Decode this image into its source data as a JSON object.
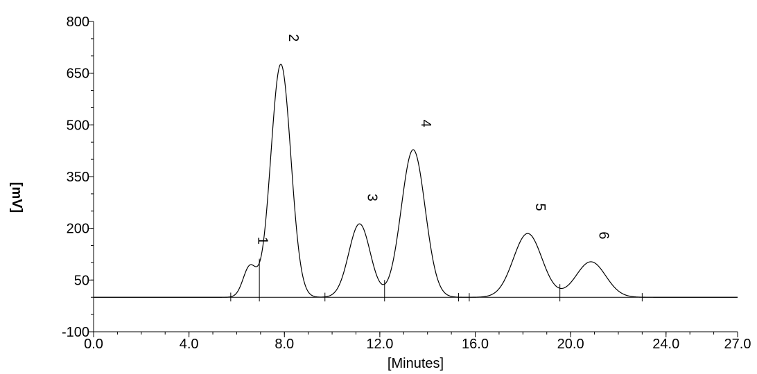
{
  "chart_data": {
    "type": "line",
    "title": "",
    "xlabel": "[Minutes]",
    "ylabel": "[mV]",
    "xlim": [
      0,
      27
    ],
    "ylim": [
      -100,
      800
    ],
    "x_ticks": [
      0,
      4,
      8,
      12,
      16,
      20,
      24,
      27
    ],
    "x_tick_labels": [
      "0.0",
      "4.0",
      "8.0",
      "12.0",
      "16.0",
      "20.0",
      "24.0",
      "27.0"
    ],
    "y_ticks": [
      -100,
      50,
      200,
      350,
      500,
      650,
      800
    ],
    "y_tick_labels": [
      "-100",
      "50",
      "200",
      "350",
      "500",
      "650",
      "800"
    ],
    "grid": false,
    "baseline": 0,
    "peaks": [
      {
        "label": "1",
        "rt": 6.55,
        "height": 88,
        "sigma": 0.28
      },
      {
        "label": "2",
        "rt": 7.85,
        "height": 676,
        "sigma": 0.42
      },
      {
        "label": "3",
        "rt": 11.15,
        "height": 213,
        "sigma": 0.45
      },
      {
        "label": "4",
        "rt": 13.4,
        "height": 428,
        "sigma": 0.5
      },
      {
        "label": "5",
        "rt": 18.2,
        "height": 185,
        "sigma": 0.6
      },
      {
        "label": "6",
        "rt": 20.85,
        "height": 103,
        "sigma": 0.62
      }
    ],
    "integration_marks": [
      5.75,
      6.95,
      9.7,
      12.2,
      15.3,
      15.75,
      19.55,
      23.0
    ]
  }
}
